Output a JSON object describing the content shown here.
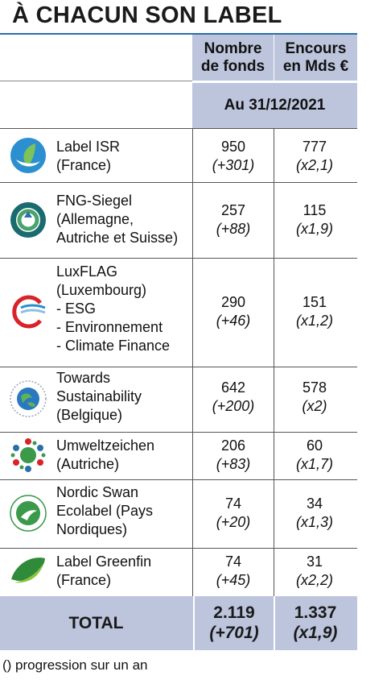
{
  "title": "À CHACUN SON LABEL",
  "header": {
    "col_funds": [
      "Nombre",
      "de fonds"
    ],
    "col_assets": [
      "Encours",
      "en Mds €"
    ],
    "date": "Au 31/12/2021"
  },
  "labels": [
    {
      "icon": "label-isr-icon",
      "name": [
        "Label ISR",
        "(France)"
      ],
      "funds": "950",
      "funds_change": "(+301)",
      "assets": "777",
      "assets_change": "(x2,1)"
    },
    {
      "icon": "fng-siegel-icon",
      "name": [
        "FNG-Siegel",
        "(Allemagne,",
        "Autriche et Suisse)"
      ],
      "funds": "257",
      "funds_change": "(+88)",
      "assets": "115",
      "assets_change": "(x1,9)"
    },
    {
      "icon": "luxflag-icon",
      "name": [
        "LuxFLAG",
        "(Luxembourg)",
        " - ESG",
        " - Environnement",
        " - Climate Finance"
      ],
      "funds": "290",
      "funds_change": "(+46)",
      "assets": "151",
      "assets_change": "(x1,2)"
    },
    {
      "icon": "towards-sustainability-icon",
      "name": [
        "Towards",
        "Sustainability",
        "(Belgique)"
      ],
      "funds": "642",
      "funds_change": "(+200)",
      "assets": "578",
      "assets_change": "(x2)"
    },
    {
      "icon": "umweltzeichen-icon",
      "name": [
        "Umweltzeichen",
        "(Autriche)"
      ],
      "funds": "206",
      "funds_change": "(+83)",
      "assets": "60",
      "assets_change": "(x1,7)"
    },
    {
      "icon": "nordic-swan-icon",
      "name": [
        "Nordic Swan",
        "Ecolabel (Pays",
        "Nordiques)"
      ],
      "funds": "74",
      "funds_change": "(+20)",
      "assets": "34",
      "assets_change": "(x1,3)"
    },
    {
      "icon": "greenfin-icon",
      "name": [
        "Label Greenfin",
        "(France)"
      ],
      "funds": "74",
      "funds_change": "(+45)",
      "assets": "31",
      "assets_change": "(x2,2)"
    }
  ],
  "total": {
    "label": "TOTAL",
    "funds": "2.119",
    "funds_change": "(+701)",
    "assets": "1.337",
    "assets_change": "(x1,9)"
  },
  "footnote": "() progression sur un an",
  "colors": {
    "header_bg": "#bcc5dc",
    "rule": "#2a6fa8"
  }
}
